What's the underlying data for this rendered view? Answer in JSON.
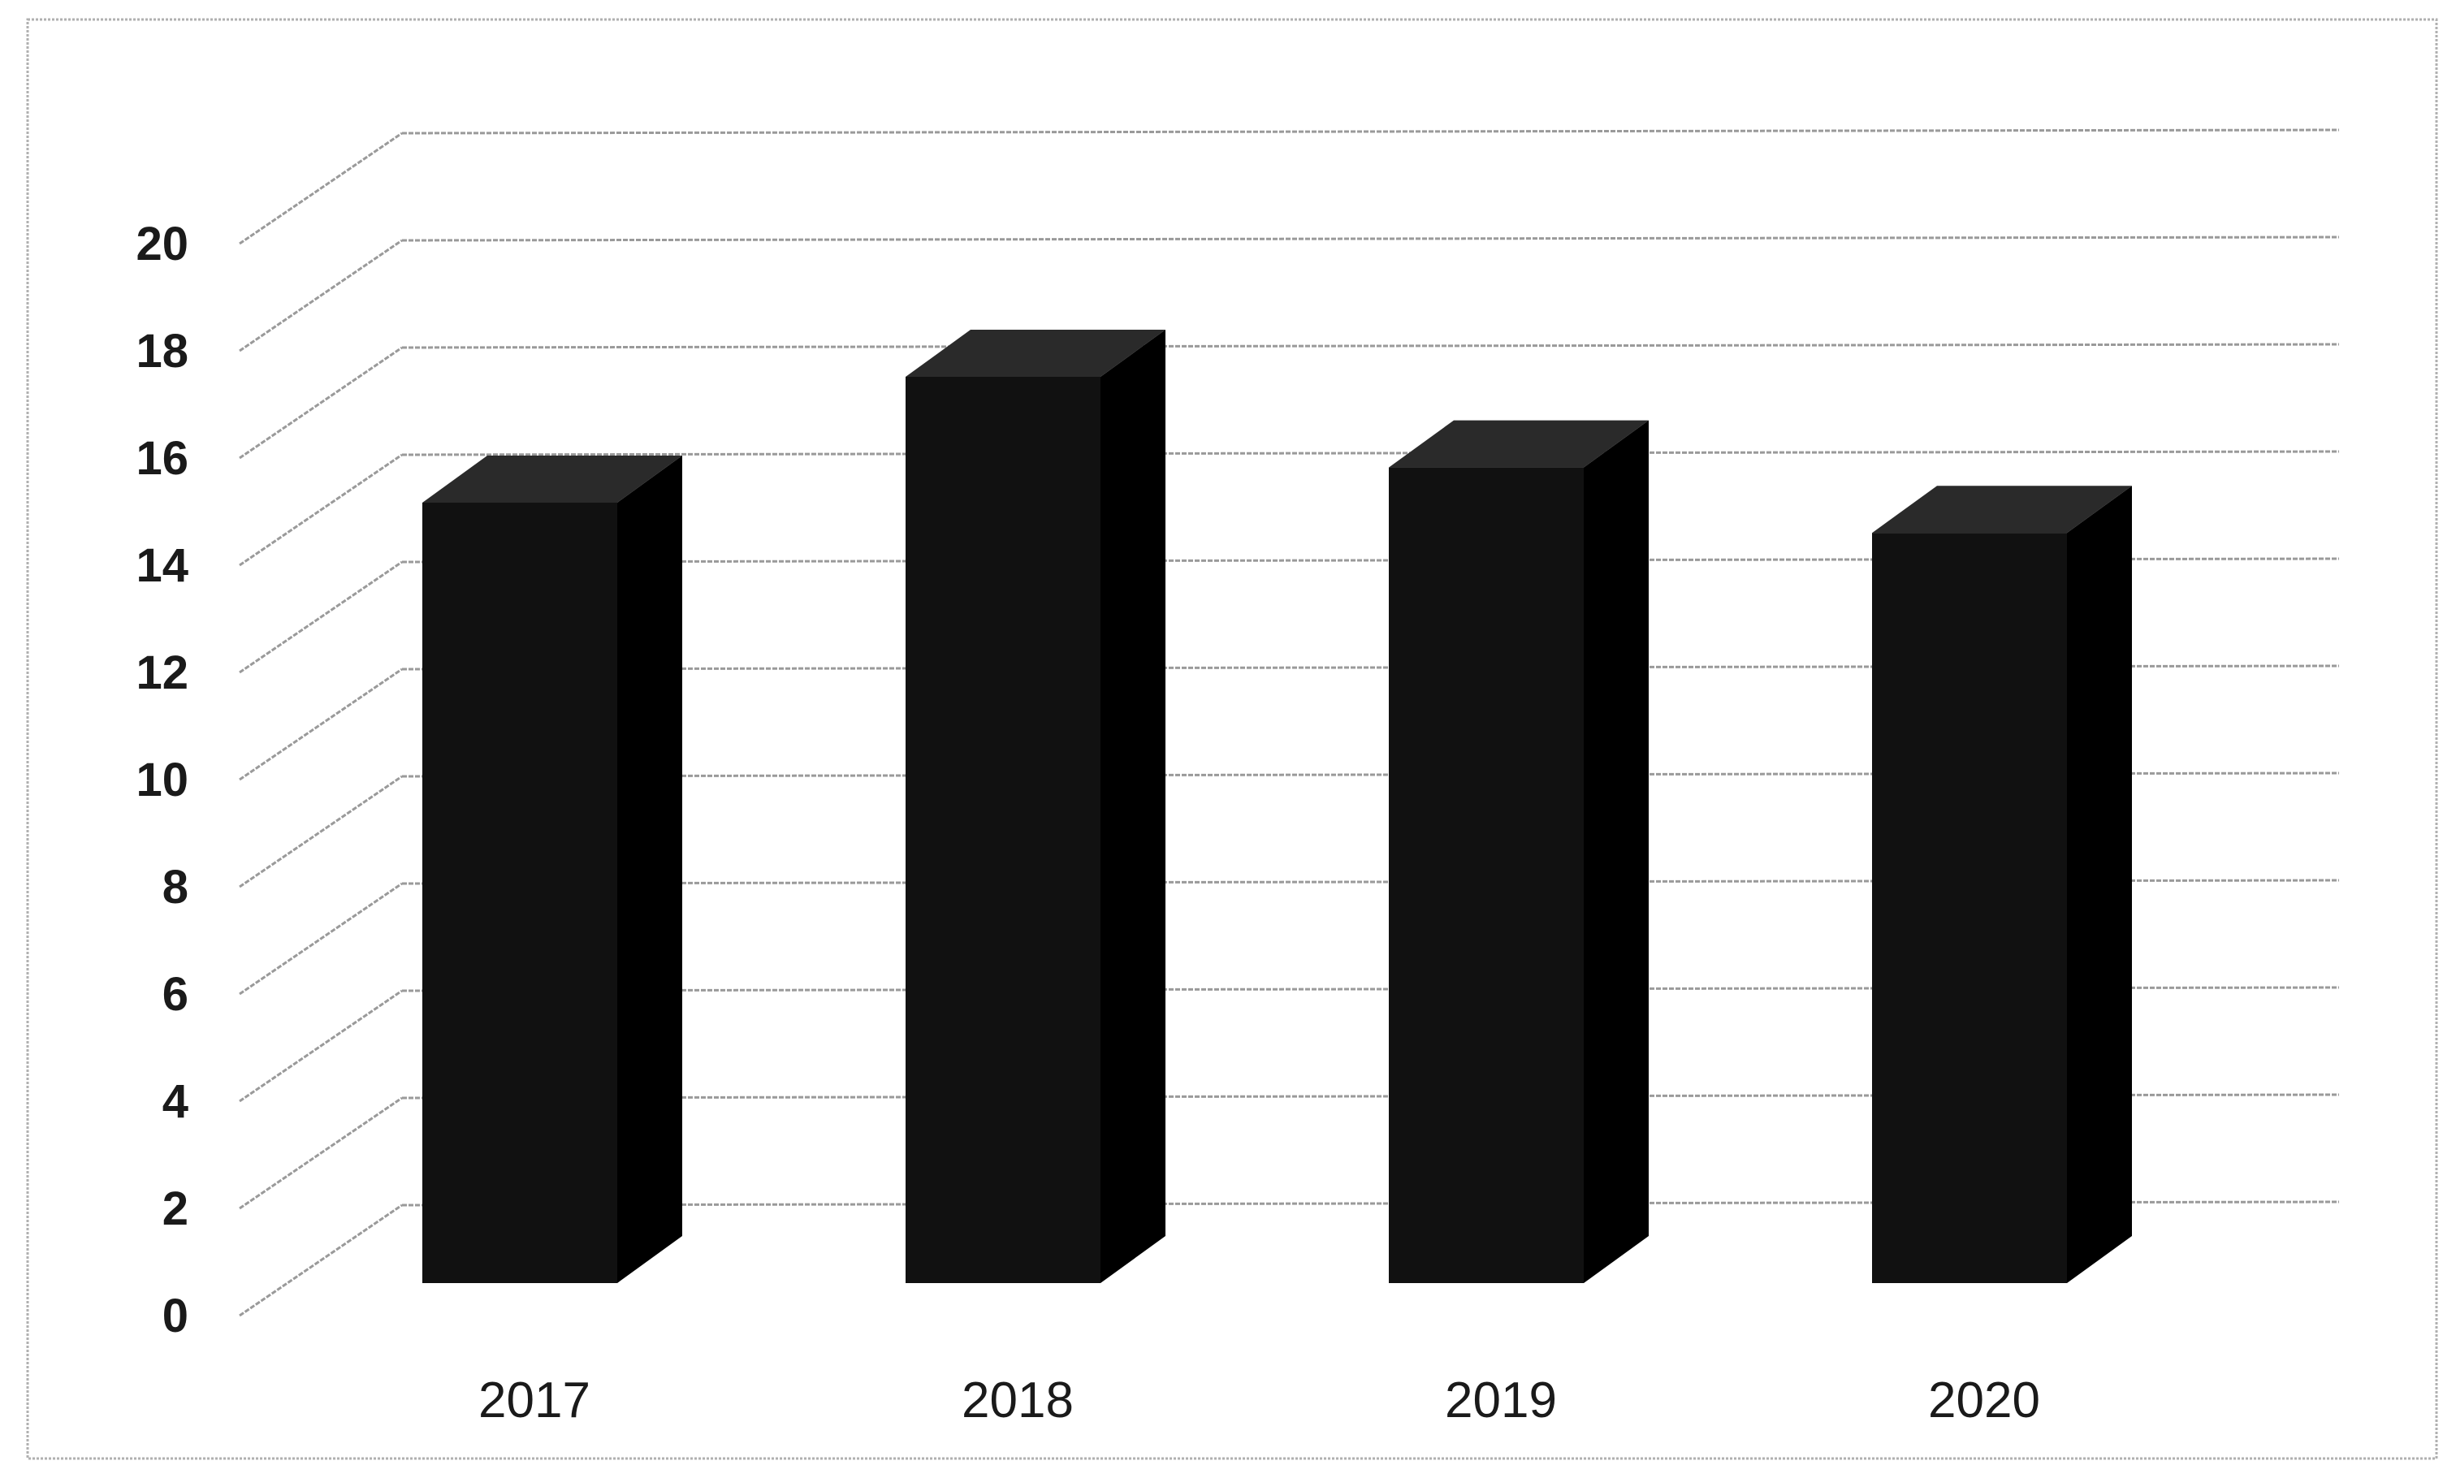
{
  "chart_data": {
    "type": "bar",
    "style": "3d-column",
    "title": "",
    "xlabel": "",
    "ylabel": "",
    "categories": [
      "2017",
      "2018",
      "2019",
      "2020"
    ],
    "values": [
      15.5,
      18.0,
      16.2,
      14.9
    ],
    "ylim": [
      0,
      20
    ],
    "yticks": [
      "0",
      "2",
      "4",
      "6",
      "8",
      "10",
      "12",
      "14",
      "16",
      "18",
      "20"
    ],
    "grid": true,
    "legend": "none",
    "colors": {
      "bar_front": "#111111",
      "bar_side": "#000000",
      "bar_top": "#2a2a2a",
      "grid": "#9a9a9a",
      "frame": "#b0b0b0",
      "text": "#1a1a1a"
    }
  }
}
